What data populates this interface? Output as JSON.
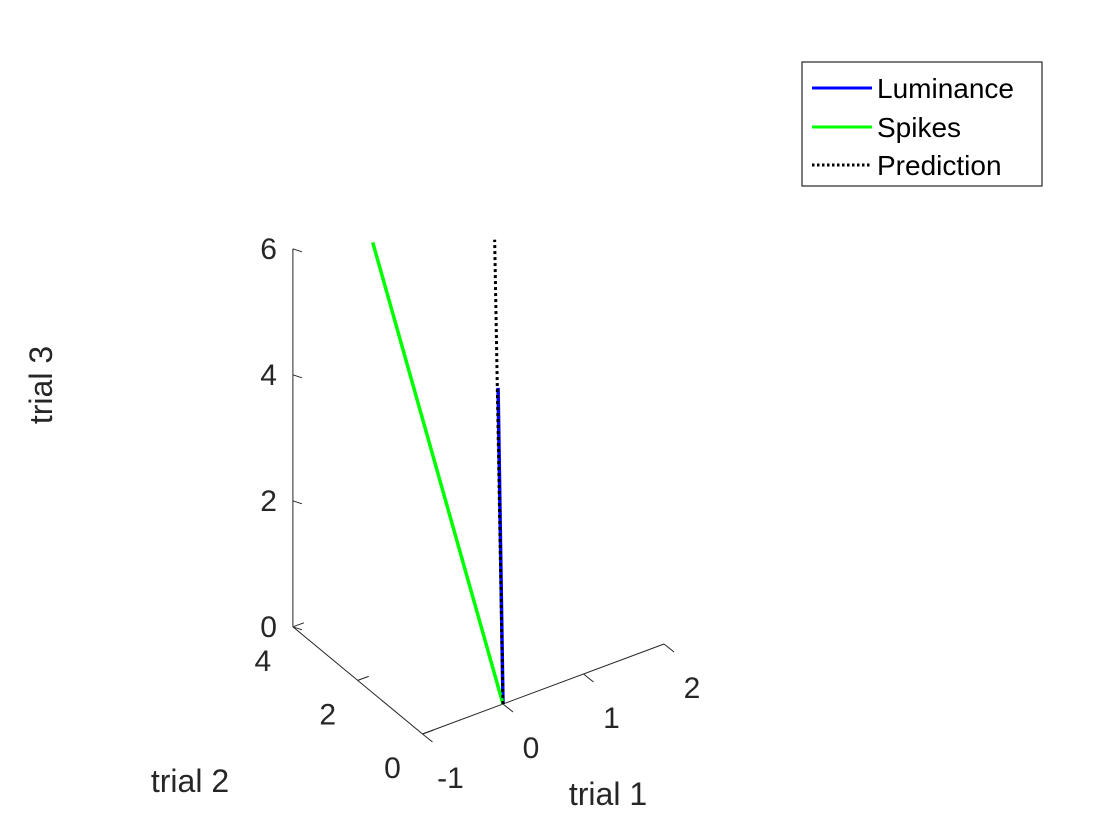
{
  "chart_data": {
    "type": "line",
    "view": "3d",
    "xlabel": "trial 1",
    "ylabel": "trial 2",
    "zlabel": "trial 3",
    "xlim": [
      -1,
      2
    ],
    "ylim": [
      0,
      4
    ],
    "zlim": [
      0,
      6
    ],
    "xticks": [
      "-1",
      "0",
      "1",
      "2"
    ],
    "yticks": [
      "0",
      "2",
      "4"
    ],
    "zticks": [
      "0",
      "2",
      "4",
      "6"
    ],
    "grid": false,
    "legend": {
      "placement": "top-right",
      "entries": [
        {
          "name": "Luminance",
          "color": "#0000ff",
          "style": "solid"
        },
        {
          "name": "Spikes",
          "color": "#00ff00",
          "style": "solid"
        },
        {
          "name": "Prediction",
          "color": "#000000",
          "style": "dotted"
        }
      ]
    },
    "series": [
      {
        "name": "Luminance",
        "color": "#0000ff",
        "style": "solid",
        "points": [
          [
            0,
            0,
            0
          ],
          [
            0.1,
            0.4,
            4.8
          ]
        ]
      },
      {
        "name": "Spikes",
        "color": "#00ff00",
        "style": "solid",
        "points": [
          [
            0,
            0,
            0
          ],
          [
            -0.25,
            3.4,
            6.0
          ]
        ]
      },
      {
        "name": "Prediction",
        "color": "#000000",
        "style": "dotted",
        "points": [
          [
            0,
            0,
            0
          ],
          [
            0.17,
            0.68,
            7.0
          ]
        ]
      }
    ]
  }
}
